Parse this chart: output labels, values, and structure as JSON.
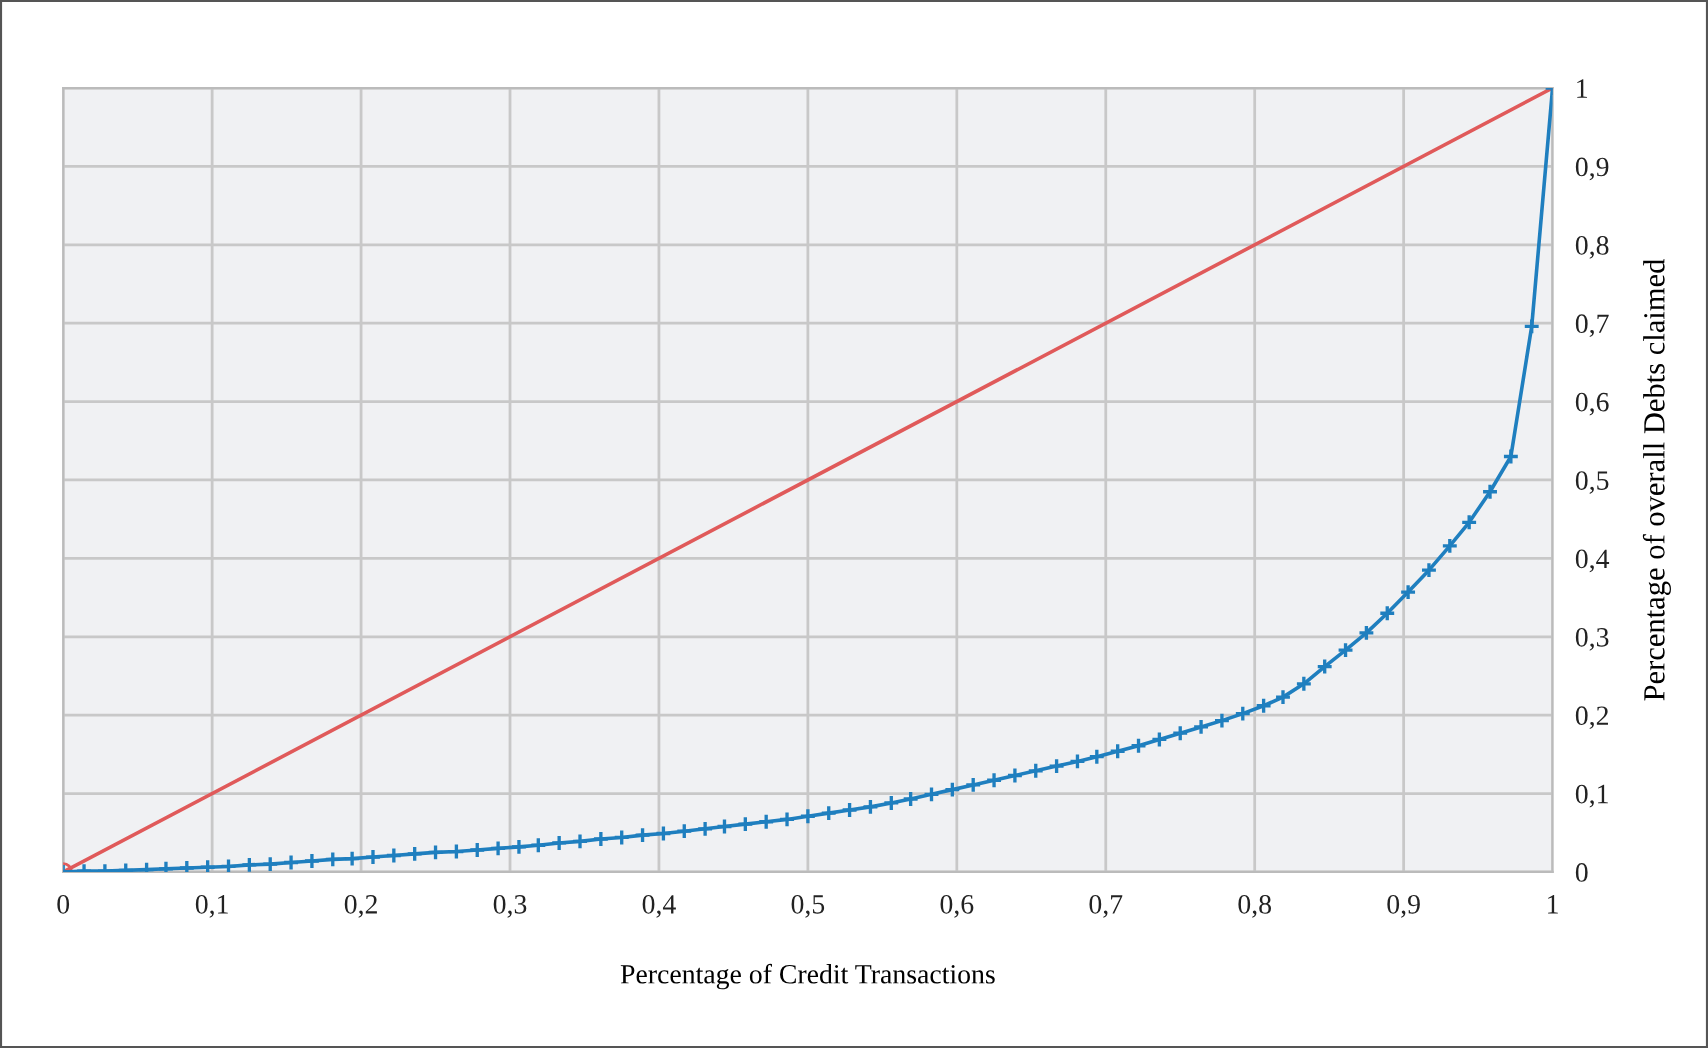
{
  "chart_data": {
    "type": "line",
    "xlabel": "Percentage of Credit Transactions",
    "ylabel": "Percentage of overall Debts claimed",
    "xlim": [
      0,
      1
    ],
    "ylim": [
      0,
      1
    ],
    "xticks": [
      0,
      {
        "value": 0.1,
        "label": "0,1"
      },
      {
        "value": 0.2,
        "label": "0,2"
      },
      {
        "value": 0.3,
        "label": "0,3"
      },
      {
        "value": 0.4,
        "label": "0,4"
      },
      {
        "value": 0.5,
        "label": "0,5"
      },
      {
        "value": 0.6,
        "label": "0,6"
      },
      {
        "value": 0.7,
        "label": "0,7"
      },
      {
        "value": 0.8,
        "label": "0,8"
      },
      {
        "value": 0.9,
        "label": "0,9"
      },
      1
    ],
    "yticks": [
      0,
      {
        "value": 0.1,
        "label": "0,1"
      },
      {
        "value": 0.2,
        "label": "0,2"
      },
      {
        "value": 0.3,
        "label": "0,3"
      },
      {
        "value": 0.4,
        "label": "0,4"
      },
      {
        "value": 0.5,
        "label": "0,5"
      },
      {
        "value": 0.6,
        "label": "0,6"
      },
      {
        "value": 0.7,
        "label": "0,7"
      },
      {
        "value": 0.8,
        "label": "0,8"
      },
      {
        "value": 0.9,
        "label": "0,9"
      },
      1
    ],
    "grid": true,
    "legend": false,
    "line_style": "solid",
    "series": [
      {
        "color": "#e05a5a",
        "marker": "circle",
        "x": [
          0,
          1
        ],
        "values": [
          0,
          1
        ]
      },
      {
        "color": "#1f7fbf",
        "marker": "cross",
        "x": [
          0,
          0.014,
          0.028,
          0.042,
          0.056,
          0.069,
          0.083,
          0.097,
          0.111,
          0.125,
          0.139,
          0.153,
          0.167,
          0.181,
          0.194,
          0.208,
          0.222,
          0.236,
          0.25,
          0.264,
          0.278,
          0.292,
          0.306,
          0.319,
          0.333,
          0.347,
          0.361,
          0.375,
          0.389,
          0.403,
          0.417,
          0.431,
          0.444,
          0.458,
          0.472,
          0.486,
          0.5,
          0.514,
          0.528,
          0.542,
          0.556,
          0.569,
          0.583,
          0.597,
          0.611,
          0.625,
          0.639,
          0.653,
          0.667,
          0.681,
          0.694,
          0.708,
          0.722,
          0.736,
          0.75,
          0.764,
          0.778,
          0.792,
          0.806,
          0.819,
          0.833,
          0.847,
          0.861,
          0.875,
          0.889,
          0.903,
          0.917,
          0.931,
          0.944,
          0.958,
          0.972,
          0.986,
          1
        ],
        "values": [
          0,
          0.001,
          0.001,
          0.002,
          0.003,
          0.004,
          0.005,
          0.006,
          0.007,
          0.009,
          0.01,
          0.012,
          0.014,
          0.016,
          0.017,
          0.019,
          0.021,
          0.023,
          0.025,
          0.026,
          0.028,
          0.03,
          0.032,
          0.034,
          0.037,
          0.039,
          0.042,
          0.044,
          0.047,
          0.049,
          0.052,
          0.055,
          0.058,
          0.061,
          0.064,
          0.067,
          0.071,
          0.075,
          0.079,
          0.083,
          0.088,
          0.093,
          0.099,
          0.105,
          0.111,
          0.117,
          0.123,
          0.129,
          0.135,
          0.141,
          0.147,
          0.154,
          0.161,
          0.169,
          0.177,
          0.185,
          0.193,
          0.202,
          0.212,
          0.223,
          0.24,
          0.262,
          0.283,
          0.305,
          0.33,
          0.357,
          0.385,
          0.416,
          0.446,
          0.485,
          0.53,
          0.696,
          1
        ]
      }
    ]
  }
}
